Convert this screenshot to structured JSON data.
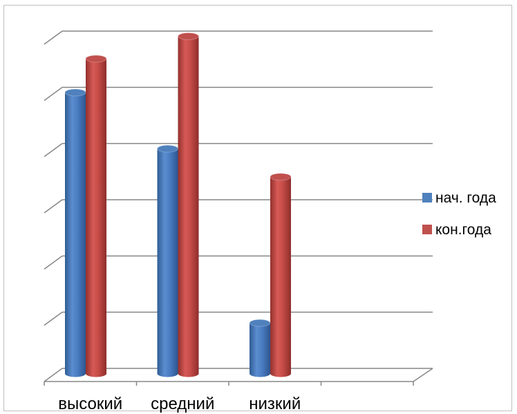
{
  "chart_data": {
    "type": "bar",
    "categories": [
      "высокий",
      "средний",
      "низкий",
      ""
    ],
    "series": [
      {
        "name": "нач. года",
        "values": [
          5,
          4,
          0.9,
          null
        ],
        "color": "#4f81bd"
      },
      {
        "name": "кон.года",
        "values": [
          5.6,
          6,
          3.5,
          null
        ],
        "color": "#c0504d"
      }
    ],
    "ylim": [
      0,
      6
    ],
    "grid": true,
    "legend": "right",
    "style": "3d-cylinder"
  }
}
